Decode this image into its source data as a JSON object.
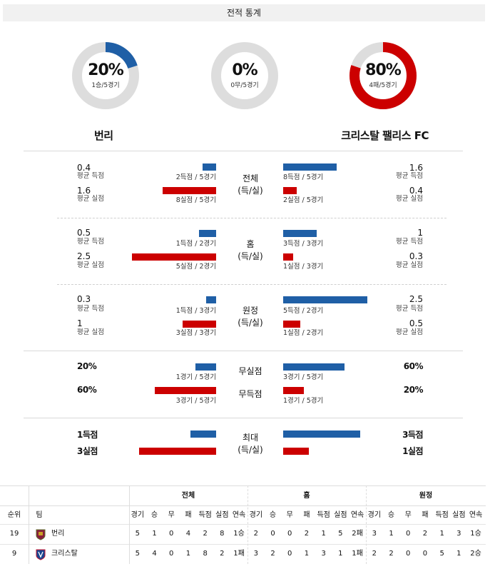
{
  "title": "전적 통계",
  "donuts": [
    {
      "pct": "20%",
      "sub": "1승/5경기",
      "fraction": 0.2,
      "color": "#1f5fa6"
    },
    {
      "pct": "0%",
      "sub": "0무/5경기",
      "fraction": 0.0,
      "color": "#1f5fa6"
    },
    {
      "pct": "80%",
      "sub": "4패/5경기",
      "fraction": 0.8,
      "color": "#cc0000"
    }
  ],
  "teams": {
    "left": "번리",
    "right": "크리스탈 팰리스 FC"
  },
  "sections": {
    "total": {
      "cat1": "전체",
      "cat2": "(득/실)",
      "left": {
        "score": "0.4",
        "score_label": "평균 득점",
        "score_caption": "2득점 / 5경기",
        "concede": "1.6",
        "concede_label": "평균 실점",
        "concede_caption": "8실점 / 5경기"
      },
      "right": {
        "score": "1.6",
        "score_label": "평균 득점",
        "score_caption": "8득점 / 5경기",
        "concede": "0.4",
        "concede_label": "평균 실점",
        "concede_caption": "2실점 / 5경기"
      }
    },
    "home": {
      "cat1": "홈",
      "cat2": "(득/실)",
      "left": {
        "score": "0.5",
        "score_label": "평균 득점",
        "score_caption": "1득점 / 2경기",
        "concede": "2.5",
        "concede_label": "평균 실점",
        "concede_caption": "5실점 / 2경기"
      },
      "right": {
        "score": "1",
        "score_label": "평균 득점",
        "score_caption": "3득점 / 3경기",
        "concede": "0.3",
        "concede_label": "평균 실점",
        "concede_caption": "1실점 / 3경기"
      }
    },
    "away": {
      "cat1": "원정",
      "cat2": "(득/실)",
      "left": {
        "score": "0.3",
        "score_label": "평균 득점",
        "score_caption": "1득점 / 3경기",
        "concede": "1",
        "concede_label": "평균 실점",
        "concede_caption": "3실점 / 3경기"
      },
      "right": {
        "score": "2.5",
        "score_label": "평균 득점",
        "score_caption": "5득점 / 2경기",
        "concede": "0.5",
        "concede_label": "평균 실점",
        "concede_caption": "1실점 / 2경기"
      }
    },
    "clean": {
      "cat_clean": "무실점",
      "cat_noscore": "무득점",
      "left": {
        "clean": "20%",
        "clean_caption": "1경기 / 5경기",
        "noscore": "60%",
        "noscore_caption": "3경기 / 5경기"
      },
      "right": {
        "clean": "60%",
        "clean_caption": "3경기 / 5경기",
        "noscore": "20%",
        "noscore_caption": "1경기 / 5경기"
      }
    },
    "max": {
      "cat1": "최대",
      "cat2": "(득/실)",
      "left": {
        "score": "1득점",
        "concede": "3실점"
      },
      "right": {
        "score": "3득점",
        "concede": "1실점"
      }
    }
  },
  "bars": {
    "total": {
      "l_score": 0.4,
      "l_concede": 1.6,
      "r_score": 1.6,
      "r_concede": 0.4
    },
    "home": {
      "l_score": 0.5,
      "l_concede": 2.5,
      "r_score": 1,
      "r_concede": 0.3
    },
    "away": {
      "l_score": 0.3,
      "l_concede": 1,
      "r_score": 2.5,
      "r_concede": 0.5
    },
    "clean": {
      "l_clean": 20,
      "l_noscore": 60,
      "r_clean": 60,
      "r_noscore": 20
    },
    "max": {
      "l_score": 1,
      "l_concede": 3,
      "r_score": 3,
      "r_concede": 1
    }
  },
  "standings": {
    "groups": [
      "전체",
      "홈",
      "원정"
    ],
    "col_rank": "순위",
    "col_team": "팀",
    "stat_cols": [
      "경기",
      "승",
      "무",
      "패",
      "득점",
      "실점",
      "연속"
    ],
    "rows": [
      {
        "rank": "19",
        "team": "번리",
        "total": [
          "5",
          "1",
          "0",
          "4",
          "2",
          "8",
          "1승"
        ],
        "home": [
          "2",
          "0",
          "0",
          "2",
          "1",
          "5",
          "2패"
        ],
        "away": [
          "3",
          "1",
          "0",
          "2",
          "1",
          "3",
          "1승"
        ]
      },
      {
        "rank": "9",
        "team": "크리스탈",
        "total": [
          "5",
          "4",
          "0",
          "1",
          "8",
          "2",
          "1패"
        ],
        "home": [
          "3",
          "2",
          "0",
          "1",
          "3",
          "1",
          "1패"
        ],
        "away": [
          "2",
          "2",
          "0",
          "0",
          "5",
          "1",
          "2승"
        ]
      }
    ]
  },
  "colors": {
    "blue": "#1f5fa6",
    "red": "#cc0000",
    "track": "#dddddd"
  }
}
